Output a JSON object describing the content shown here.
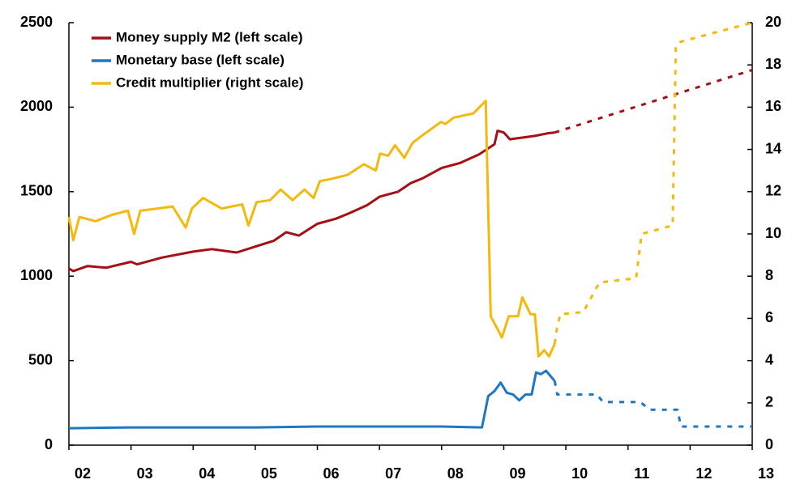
{
  "chart_data": {
    "type": "line",
    "xlim": [
      2002,
      2013
    ],
    "xticks": [
      {
        "value": 2002,
        "label": "02"
      },
      {
        "value": 2003,
        "label": "03"
      },
      {
        "value": 2004,
        "label": "04"
      },
      {
        "value": 2005,
        "label": "05"
      },
      {
        "value": 2006,
        "label": "06"
      },
      {
        "value": 2007,
        "label": "07"
      },
      {
        "value": 2008,
        "label": "08"
      },
      {
        "value": 2009,
        "label": "09"
      },
      {
        "value": 2010,
        "label": "10"
      },
      {
        "value": 2011,
        "label": "11"
      },
      {
        "value": 2012,
        "label": "12"
      },
      {
        "value": 2013,
        "label": "13"
      }
    ],
    "ylim": [
      0,
      2500
    ],
    "yticks": [
      0,
      500,
      1000,
      1500,
      2000,
      2500
    ],
    "y2lim": [
      0,
      20
    ],
    "y2ticks": [
      0,
      2,
      4,
      6,
      8,
      10,
      12,
      14,
      16,
      18,
      20
    ],
    "projection_start": 2009.82,
    "legend": "top-left",
    "series": [
      {
        "name": "Money supply M2 (left scale)",
        "color": "#a50f15",
        "axis": "y",
        "x": [
          2002.0,
          2002.07,
          2002.3,
          2002.6,
          2003.0,
          2003.1,
          2003.5,
          2004.0,
          2004.3,
          2004.7,
          2005.0,
          2005.3,
          2005.5,
          2005.7,
          2006.0,
          2006.3,
          2006.5,
          2006.8,
          2007.0,
          2007.3,
          2007.5,
          2007.7,
          2008.0,
          2008.3,
          2008.6,
          2008.85,
          2008.9,
          2009.0,
          2009.1,
          2009.3,
          2009.5,
          2009.7,
          2009.82,
          2013.0
        ],
        "values": [
          1045,
          1030,
          1060,
          1050,
          1085,
          1070,
          1110,
          1145,
          1160,
          1140,
          1175,
          1210,
          1260,
          1240,
          1310,
          1340,
          1370,
          1420,
          1470,
          1500,
          1550,
          1580,
          1640,
          1670,
          1720,
          1780,
          1860,
          1850,
          1810,
          1820,
          1830,
          1845,
          1850,
          2220
        ]
      },
      {
        "name": "Monetary base (left scale)",
        "color": "#1f77c4",
        "axis": "y",
        "x": [
          2002.0,
          2003.0,
          2004.0,
          2005.0,
          2006.0,
          2007.0,
          2008.0,
          2008.65,
          2008.75,
          2008.85,
          2008.95,
          2009.05,
          2009.15,
          2009.25,
          2009.35,
          2009.45,
          2009.52,
          2009.6,
          2009.68,
          2009.82,
          2009.86,
          2010.5,
          2010.6,
          2011.2,
          2011.35,
          2011.8,
          2011.85,
          2013.0
        ],
        "values": [
          100,
          105,
          105,
          105,
          110,
          110,
          110,
          105,
          290,
          320,
          370,
          310,
          300,
          265,
          300,
          300,
          430,
          420,
          440,
          380,
          300,
          300,
          255,
          255,
          210,
          210,
          110,
          110
        ]
      },
      {
        "name": "Credit multiplier (right scale)",
        "color": "#f5b80f",
        "axis": "y2",
        "x": [
          2002.0,
          2002.07,
          2002.17,
          2002.43,
          2002.69,
          2002.95,
          2003.05,
          2003.15,
          2003.41,
          2003.67,
          2003.88,
          2003.98,
          2004.16,
          2004.46,
          2004.79,
          2004.89,
          2005.02,
          2005.24,
          2005.41,
          2005.6,
          2005.79,
          2005.94,
          2006.04,
          2006.22,
          2006.49,
          2006.75,
          2006.94,
          2007.01,
          2007.14,
          2007.25,
          2007.4,
          2007.53,
          2007.66,
          2007.99,
          2008.06,
          2008.19,
          2008.51,
          2008.71,
          2008.79,
          2008.97,
          2009.08,
          2009.23,
          2009.3,
          2009.43,
          2009.5,
          2009.56,
          2009.65,
          2009.73,
          2009.82,
          2009.86,
          2009.91,
          2010.28,
          2010.54,
          2011.13,
          2011.22,
          2011.72,
          2011.77,
          2011.85,
          2013.0
        ],
        "values": [
          10.8,
          9.7,
          10.8,
          10.6,
          10.9,
          11.1,
          10.0,
          11.1,
          11.2,
          11.3,
          10.3,
          11.2,
          11.7,
          11.2,
          11.4,
          10.4,
          11.5,
          11.6,
          12.1,
          11.6,
          12.1,
          11.7,
          12.5,
          12.6,
          12.8,
          13.3,
          13.0,
          13.8,
          13.7,
          14.2,
          13.6,
          14.3,
          14.6,
          15.3,
          15.2,
          15.5,
          15.7,
          16.3,
          6.1,
          5.1,
          6.1,
          6.1,
          7.0,
          6.2,
          6.2,
          4.2,
          4.5,
          4.2,
          4.8,
          5.6,
          6.2,
          6.3,
          7.7,
          7.9,
          10.0,
          10.4,
          18.9,
          19.1,
          20.0
        ]
      }
    ]
  }
}
